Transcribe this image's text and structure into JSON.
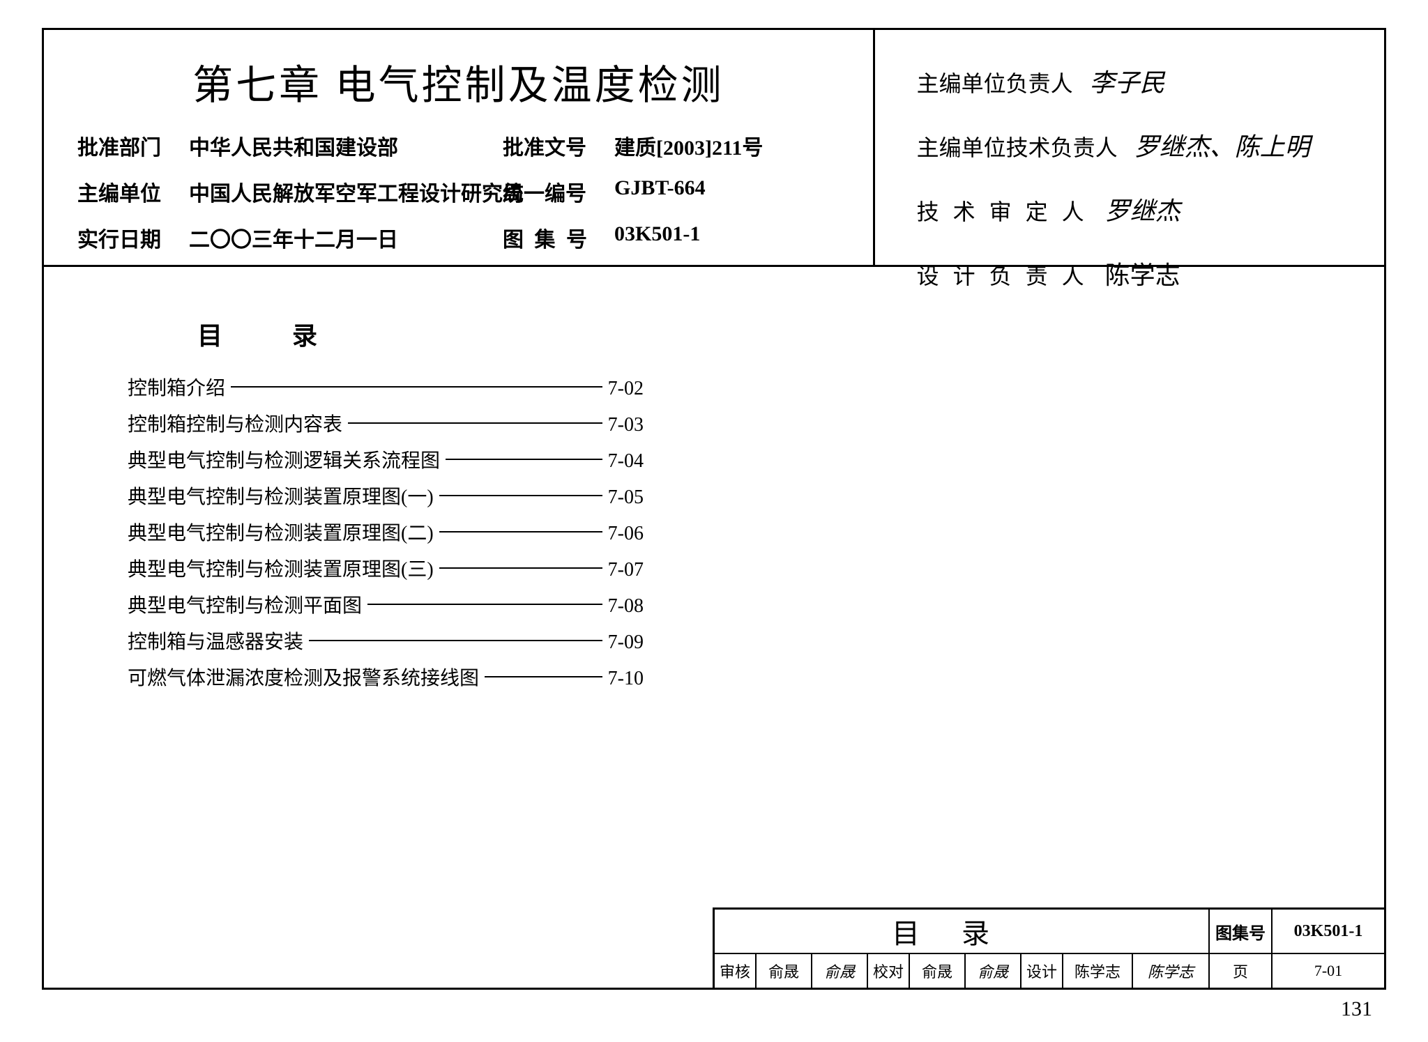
{
  "chapter_title": "第七章 电气控制及温度检测",
  "meta": {
    "row1": {
      "l1": "批准部门",
      "v1": "中华人民共和国建设部",
      "l2": "批准文号",
      "v2": "建质[2003]211号"
    },
    "row2": {
      "l1": "主编单位",
      "v1": "中国人民解放军空军工程设计研究局",
      "l2": "统一编号",
      "v2": "GJBT-664"
    },
    "row3": {
      "l1": "实行日期",
      "v1": "二〇〇三年十二月一日",
      "l2": "图 集 号",
      "v2": "03K501-1"
    }
  },
  "signatures": {
    "s1": {
      "label": "主编单位负责人",
      "name": "李子民"
    },
    "s2": {
      "label": "主编单位技术负责人",
      "name": "罗继杰、陈上明"
    },
    "s3": {
      "label": "技 术 审 定 人",
      "name": "罗继杰"
    },
    "s4": {
      "label": "设 计 负 责 人",
      "name": "陈学志"
    }
  },
  "toc_title": "目录",
  "toc": [
    {
      "text": "控制箱介绍",
      "page": "7-02"
    },
    {
      "text": "控制箱控制与检测内容表",
      "page": "7-03"
    },
    {
      "text": "典型电气控制与检测逻辑关系流程图",
      "page": "7-04"
    },
    {
      "text": "典型电气控制与检测装置原理图(一)",
      "page": "7-05"
    },
    {
      "text": "典型电气控制与检测装置原理图(二)",
      "page": "7-06"
    },
    {
      "text": "典型电气控制与检测装置原理图(三)",
      "page": "7-07"
    },
    {
      "text": "典型电气控制与检测平面图",
      "page": "7-08"
    },
    {
      "text": "控制箱与温感器安装",
      "page": "7-09"
    },
    {
      "text": "可燃气体泄漏浓度检测及报警系统接线图",
      "page": "7-10"
    }
  ],
  "titleblock": {
    "main": "目录",
    "set_label": "图集号",
    "set_value": "03K501-1",
    "row2": {
      "c1": "审核",
      "c2": "俞晟",
      "c3": "俞晟",
      "c4": "校对",
      "c5": "俞晟",
      "c6": "俞晟",
      "c7": "设计",
      "c8": "陈学志",
      "c9": "陈学志",
      "c10": "页",
      "c11": "7-01"
    }
  },
  "page_number": "131"
}
